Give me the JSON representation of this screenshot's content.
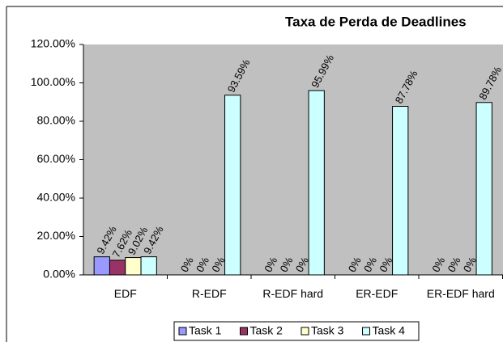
{
  "chart_data": {
    "type": "bar",
    "title": "Taxa de Perda de Deadlines",
    "categories": [
      "EDF",
      "R-EDF",
      "R-EDF hard",
      "ER-EDF",
      "ER-EDF hard"
    ],
    "series": [
      {
        "name": "Task 1",
        "color": "#9999ff",
        "values": [
          9.42,
          0,
          0,
          0,
          0
        ],
        "value_labels": [
          "9.42%",
          "0%",
          "0%",
          "0%",
          "0%"
        ]
      },
      {
        "name": "Task 2",
        "color": "#993366",
        "values": [
          7.62,
          0,
          0,
          0,
          0
        ],
        "value_labels": [
          "7.62%",
          "0%",
          "0%",
          "0%",
          "0%"
        ]
      },
      {
        "name": "Task 3",
        "color": "#ffffcc",
        "values": [
          9.02,
          0,
          0,
          0,
          0
        ],
        "value_labels": [
          "9.02%",
          "0%",
          "0%",
          "0%",
          "0%"
        ]
      },
      {
        "name": "Task 4",
        "color": "#ccffff",
        "values": [
          9.42,
          93.59,
          95.99,
          87.78,
          89.78
        ],
        "value_labels": [
          "9.42%",
          "93.59%",
          "95.99%",
          "87.78%",
          "89.78%"
        ]
      }
    ],
    "ylim": [
      0,
      120
    ],
    "yticks": [
      {
        "value": 0,
        "label": "0.00%"
      },
      {
        "value": 20,
        "label": "20.00%"
      },
      {
        "value": 40,
        "label": "40.00%"
      },
      {
        "value": 60,
        "label": "60.00%"
      },
      {
        "value": 80,
        "label": "80.00%"
      },
      {
        "value": 100,
        "label": "100.00%"
      },
      {
        "value": 120,
        "label": "120.00%"
      }
    ],
    "plot_background": "#c0c0c0",
    "legend": "bottom"
  }
}
